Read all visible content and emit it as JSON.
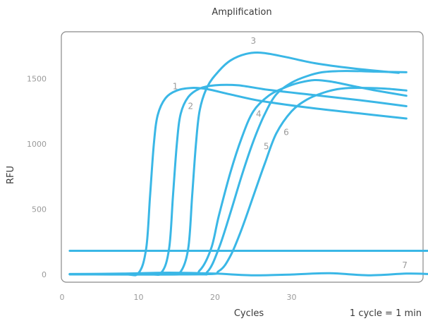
{
  "chart_data": {
    "type": "line",
    "title": "Amplification",
    "xlabel": "Cycles",
    "ylabel": "RFU",
    "note": "1 cycle = 1 min",
    "xlim": [
      0,
      47
    ],
    "ylim": [
      -50,
      1850
    ],
    "x_ticks": [
      0,
      10,
      20,
      30
    ],
    "y_ticks": [
      0,
      500,
      1000,
      1500
    ],
    "grid": false,
    "legend": "none",
    "colors": {
      "curve": "#3ab7e6",
      "frame": "#8a8a8a",
      "text": "#3a3a3a",
      "tick": "#9a9a9a"
    },
    "series": [
      {
        "label": "1",
        "label_at": [
          14.8,
          1440
        ],
        "points": [
          [
            1,
            0
          ],
          [
            8,
            0
          ],
          [
            10,
            10
          ],
          [
            11,
            200
          ],
          [
            11.5,
            600
          ],
          [
            12,
            1000
          ],
          [
            12.5,
            1220
          ],
          [
            13.5,
            1350
          ],
          [
            15,
            1410
          ],
          [
            17,
            1430
          ],
          [
            19,
            1420
          ],
          [
            22,
            1380
          ],
          [
            26,
            1330
          ],
          [
            32,
            1280
          ],
          [
            38,
            1240
          ],
          [
            45,
            1195
          ]
        ]
      },
      {
        "label": "2",
        "label_at": [
          16.8,
          1290
        ],
        "points": [
          [
            1,
            0
          ],
          [
            11,
            0
          ],
          [
            13,
            15
          ],
          [
            14,
            200
          ],
          [
            14.5,
            600
          ],
          [
            15,
            1000
          ],
          [
            15.5,
            1230
          ],
          [
            16.5,
            1360
          ],
          [
            18,
            1425
          ],
          [
            20,
            1450
          ],
          [
            23,
            1450
          ],
          [
            27,
            1415
          ],
          [
            33,
            1375
          ],
          [
            39,
            1335
          ],
          [
            45,
            1290
          ]
        ]
      },
      {
        "label": "3",
        "label_at": [
          25,
          1790
        ],
        "points": [
          [
            1,
            0
          ],
          [
            14,
            0
          ],
          [
            15.5,
            20
          ],
          [
            16.5,
            200
          ],
          [
            17,
            600
          ],
          [
            17.5,
            1000
          ],
          [
            18,
            1260
          ],
          [
            19,
            1440
          ],
          [
            20.5,
            1560
          ],
          [
            22,
            1640
          ],
          [
            24,
            1690
          ],
          [
            26,
            1700
          ],
          [
            29,
            1670
          ],
          [
            33,
            1620
          ],
          [
            38,
            1580
          ],
          [
            44,
            1545
          ]
        ]
      },
      {
        "label": "4",
        "label_at": [
          25.7,
          1230
        ],
        "points": [
          [
            1,
            0
          ],
          [
            16,
            0
          ],
          [
            18,
            30
          ],
          [
            19.5,
            200
          ],
          [
            20.5,
            450
          ],
          [
            22,
            780
          ],
          [
            23.5,
            1050
          ],
          [
            25,
            1250
          ],
          [
            27,
            1370
          ],
          [
            29,
            1430
          ],
          [
            31,
            1470
          ],
          [
            33,
            1490
          ],
          [
            35,
            1480
          ],
          [
            38,
            1445
          ],
          [
            41,
            1410
          ],
          [
            45,
            1370
          ]
        ]
      },
      {
        "label": "5",
        "label_at": [
          26.7,
          980
        ],
        "points": [
          [
            1,
            0
          ],
          [
            17,
            0
          ],
          [
            19,
            20
          ],
          [
            20.5,
            200
          ],
          [
            22,
            470
          ],
          [
            23.5,
            760
          ],
          [
            25,
            1020
          ],
          [
            26.5,
            1230
          ],
          [
            28,
            1380
          ],
          [
            30,
            1470
          ],
          [
            32,
            1520
          ],
          [
            34,
            1550
          ],
          [
            37,
            1560
          ],
          [
            41,
            1555
          ],
          [
            45,
            1550
          ]
        ]
      },
      {
        "label": "6",
        "label_at": [
          29.3,
          1090
        ],
        "points": [
          [
            1,
            0
          ],
          [
            18,
            0
          ],
          [
            20.5,
            25
          ],
          [
            22,
            140
          ],
          [
            23.5,
            350
          ],
          [
            25,
            600
          ],
          [
            26.5,
            850
          ],
          [
            28,
            1080
          ],
          [
            30,
            1250
          ],
          [
            32,
            1340
          ],
          [
            34,
            1390
          ],
          [
            36,
            1420
          ],
          [
            38,
            1430
          ],
          [
            42,
            1425
          ],
          [
            45,
            1410
          ]
        ]
      },
      {
        "label": "7",
        "label_at": [
          44.8,
          70
        ],
        "points": [
          [
            1,
            2
          ],
          [
            8,
            5
          ],
          [
            14,
            12
          ],
          [
            20,
            5
          ],
          [
            25,
            -8
          ],
          [
            30,
            -2
          ],
          [
            35,
            8
          ],
          [
            40,
            -8
          ],
          [
            45,
            5
          ],
          [
            48,
            2
          ]
        ]
      },
      {
        "label": "",
        "points": [
          [
            1,
            180
          ],
          [
            48,
            180
          ]
        ]
      }
    ]
  }
}
